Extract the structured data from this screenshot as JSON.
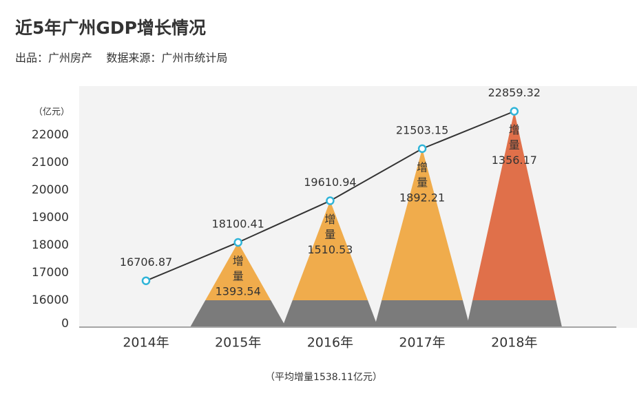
{
  "chart_data": {
    "type": "line",
    "title": "近5年广州GDP增长情况",
    "subtitle": "出品：广州房产    数据来源：广州市统计局",
    "y_unit": "（亿元）",
    "categories": [
      "2014年",
      "2015年",
      "2016年",
      "2017年",
      "2018年"
    ],
    "values": [
      16706.87,
      18100.41,
      19610.94,
      21503.15,
      22859.32
    ],
    "color": "#333333",
    "marker_color": "#2fb4d8",
    "increments": {
      "label": "增量",
      "values": [
        null,
        1393.54,
        1510.53,
        1892.21,
        1356.17
      ],
      "colors": [
        null,
        "#f0ac4c",
        "#f0ac4c",
        "#f0ac4c",
        "#e0704a"
      ],
      "base_color": "#7b7b7b"
    },
    "annotation": "（平均增量1538.11亿元）",
    "ylim": [
      0,
      23000
    ],
    "yticks": [
      0,
      16000,
      17000,
      18000,
      19000,
      20000,
      21000,
      22000
    ],
    "axis_break": true,
    "background": "#f3f3f3"
  }
}
